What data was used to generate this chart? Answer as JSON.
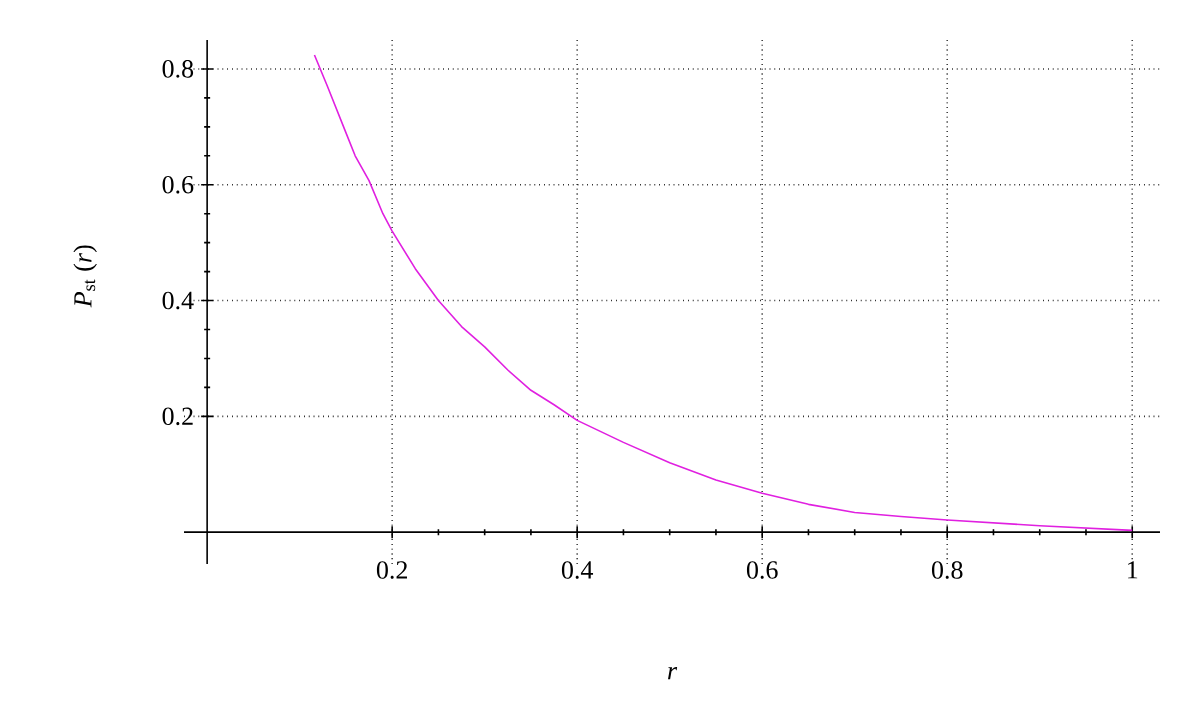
{
  "chart_data": {
    "type": "line",
    "xlabel": "r",
    "ylabel": "*P*$_{st}$ (*r*)",
    "x": [
      0.116,
      0.13,
      0.15,
      0.16,
      0.175,
      0.19,
      0.2,
      0.225,
      0.25,
      0.275,
      0.3,
      0.325,
      0.35,
      0.375,
      0.4,
      0.45,
      0.5,
      0.55,
      0.6,
      0.65,
      0.7,
      0.75,
      0.8,
      0.9,
      1.0
    ],
    "series": [
      {
        "color": "#e020e0",
        "values": [
          0.824,
          0.77,
          0.69,
          0.65,
          0.607,
          0.55,
          0.52,
          0.455,
          0.4,
          0.355,
          0.32,
          0.28,
          0.245,
          0.22,
          0.193,
          0.155,
          0.12,
          0.09,
          0.067,
          0.048,
          0.034,
          0.027,
          0.021,
          0.011,
          0.003
        ]
      }
    ],
    "xlim": [
      -0.025,
      1.03
    ],
    "ylim": [
      -0.055,
      0.85
    ],
    "xticks": [
      0.2,
      0.4,
      0.6,
      0.8,
      1
    ],
    "yticks": [
      0.2,
      0.4,
      0.6,
      0.8
    ],
    "grid": true,
    "marker": "none",
    "line_style": "solid"
  }
}
